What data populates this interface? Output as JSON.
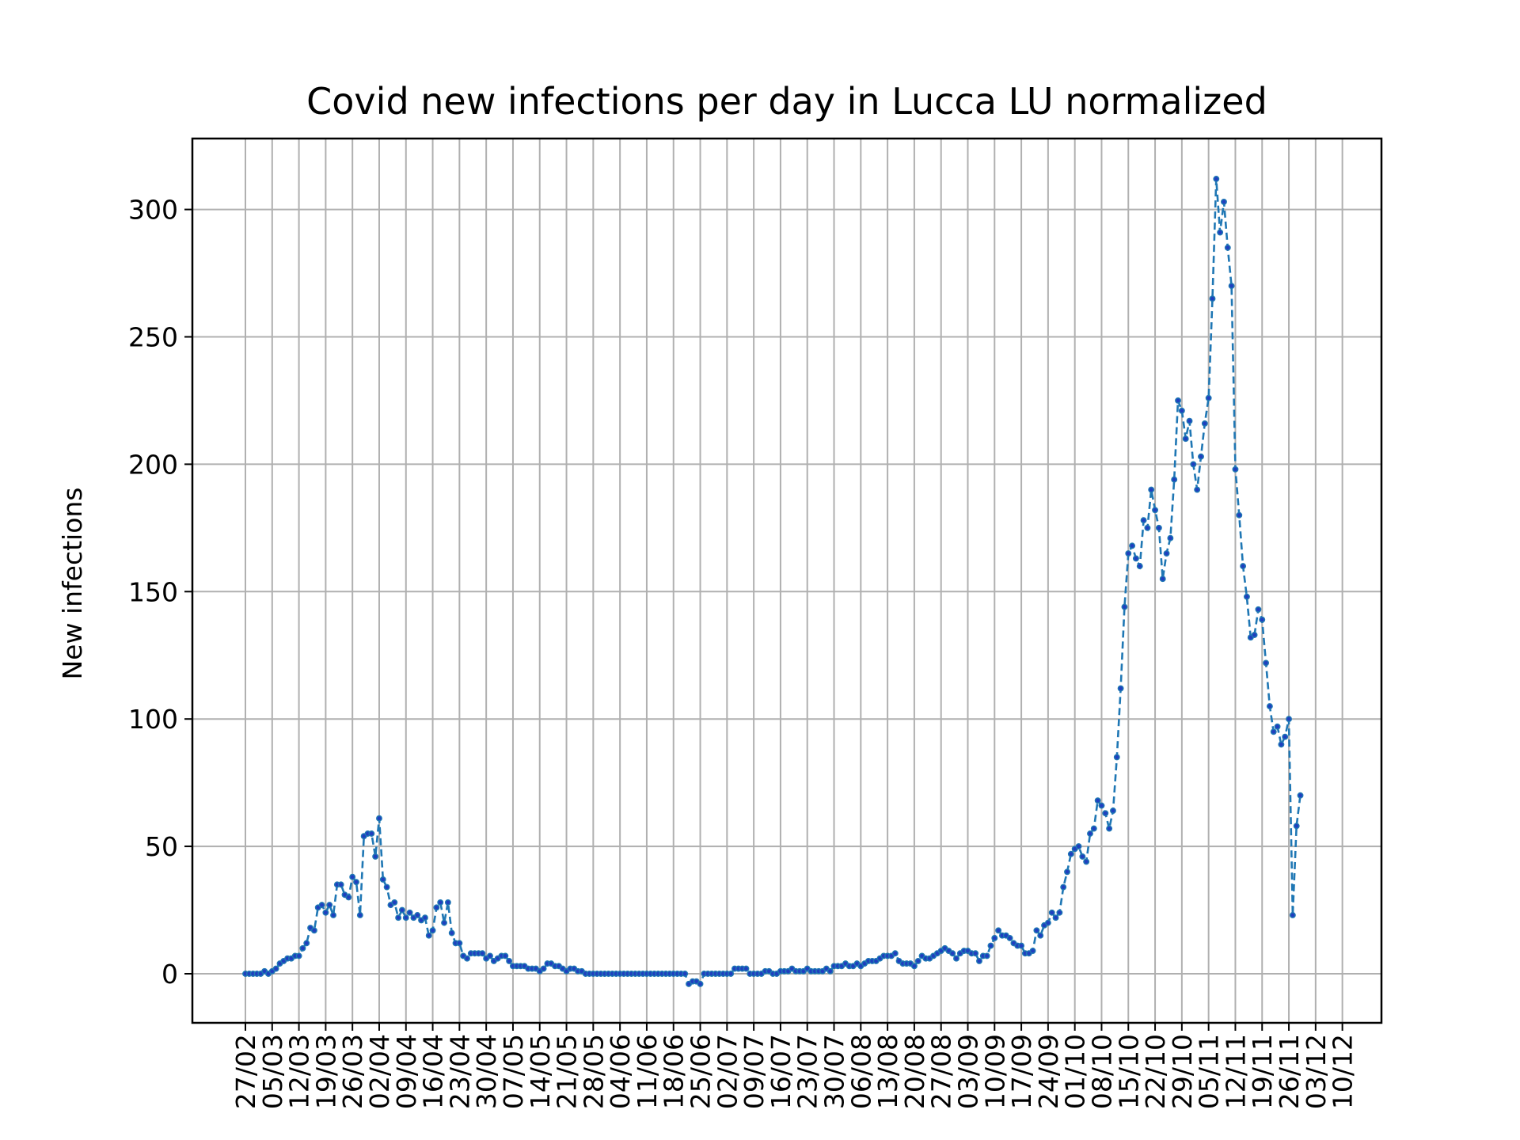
{
  "chart_data": {
    "type": "line",
    "title": "Covid new infections per day in Lucca LU normalized",
    "xlabel": "",
    "ylabel": "New infections",
    "ylim": [
      -20,
      327
    ],
    "yticks": [
      0,
      50,
      100,
      150,
      200,
      250,
      300
    ],
    "xticks": [
      "27/02",
      "05/03",
      "12/03",
      "19/03",
      "26/03",
      "02/04",
      "09/04",
      "16/04",
      "23/04",
      "30/04",
      "07/05",
      "14/05",
      "21/05",
      "28/05",
      "04/06",
      "11/06",
      "18/06",
      "25/06",
      "02/07",
      "09/07",
      "16/07",
      "23/07",
      "30/07",
      "06/08",
      "13/08",
      "20/08",
      "27/08",
      "03/09",
      "10/09",
      "17/09",
      "24/09",
      "01/10",
      "08/10",
      "15/10",
      "22/10",
      "29/10",
      "05/11",
      "12/11",
      "19/11",
      "26/11",
      "03/12",
      "10/12"
    ],
    "grid": true,
    "line_style": "dashed",
    "colors": {
      "line": "#1f77b4",
      "marker": "#1f3fbf",
      "grid": "#b0b0b0"
    },
    "series": [
      {
        "values": [
          0,
          0,
          0,
          0,
          0,
          1,
          0,
          1,
          2,
          4,
          5,
          6,
          6,
          7,
          7,
          10,
          12,
          18,
          17,
          26,
          27,
          24,
          27,
          23,
          35,
          35,
          31,
          30,
          38,
          36,
          23,
          54,
          55,
          55,
          46,
          61,
          37,
          34,
          27,
          28,
          22,
          25,
          22,
          24,
          22,
          23,
          21,
          22,
          15,
          17,
          26,
          28,
          20,
          28,
          16,
          12,
          12,
          7,
          6,
          8,
          8,
          8,
          8,
          6,
          7,
          5,
          6,
          7,
          7,
          5,
          3,
          3,
          3,
          3,
          2,
          2,
          2,
          1,
          2,
          4,
          4,
          3,
          3,
          2,
          1,
          2,
          2,
          1,
          1,
          0,
          0,
          0,
          0,
          0,
          0,
          0,
          0,
          0,
          0,
          0,
          0,
          0,
          0,
          0,
          0,
          0,
          0,
          0,
          0,
          0,
          0,
          0,
          0,
          0,
          0,
          0,
          -4,
          -3,
          -3,
          -4,
          0,
          0,
          0,
          0,
          0,
          0,
          0,
          0,
          2,
          2,
          2,
          2,
          0,
          0,
          0,
          0,
          1,
          1,
          0,
          0,
          1,
          1,
          1,
          2,
          1,
          1,
          1,
          2,
          1,
          1,
          1,
          1,
          2,
          1,
          3,
          3,
          3,
          4,
          3,
          3,
          4,
          3,
          4,
          5,
          5,
          5,
          6,
          7,
          7,
          7,
          8,
          5,
          4,
          4,
          4,
          3,
          5,
          7,
          6,
          6,
          7,
          8,
          9,
          10,
          9,
          8,
          6,
          8,
          9,
          9,
          8,
          8,
          5,
          7,
          7,
          11,
          14,
          17,
          15,
          15,
          14,
          12,
          11,
          11,
          8,
          8,
          9,
          17,
          15,
          19,
          20,
          24,
          22,
          24,
          34,
          40,
          47,
          49,
          50,
          46,
          44,
          55,
          57,
          68,
          66,
          63,
          57,
          64,
          85,
          112,
          144,
          165,
          168,
          163,
          160,
          178,
          175,
          190,
          182,
          175,
          155,
          165,
          171,
          194,
          225,
          221,
          210,
          217,
          200,
          190,
          203,
          216,
          226,
          265,
          312,
          291,
          303,
          285,
          270,
          198,
          180,
          160,
          148,
          132,
          133,
          143,
          139,
          122,
          105,
          95,
          97,
          90,
          93,
          100,
          23,
          58,
          70
        ]
      }
    ]
  }
}
